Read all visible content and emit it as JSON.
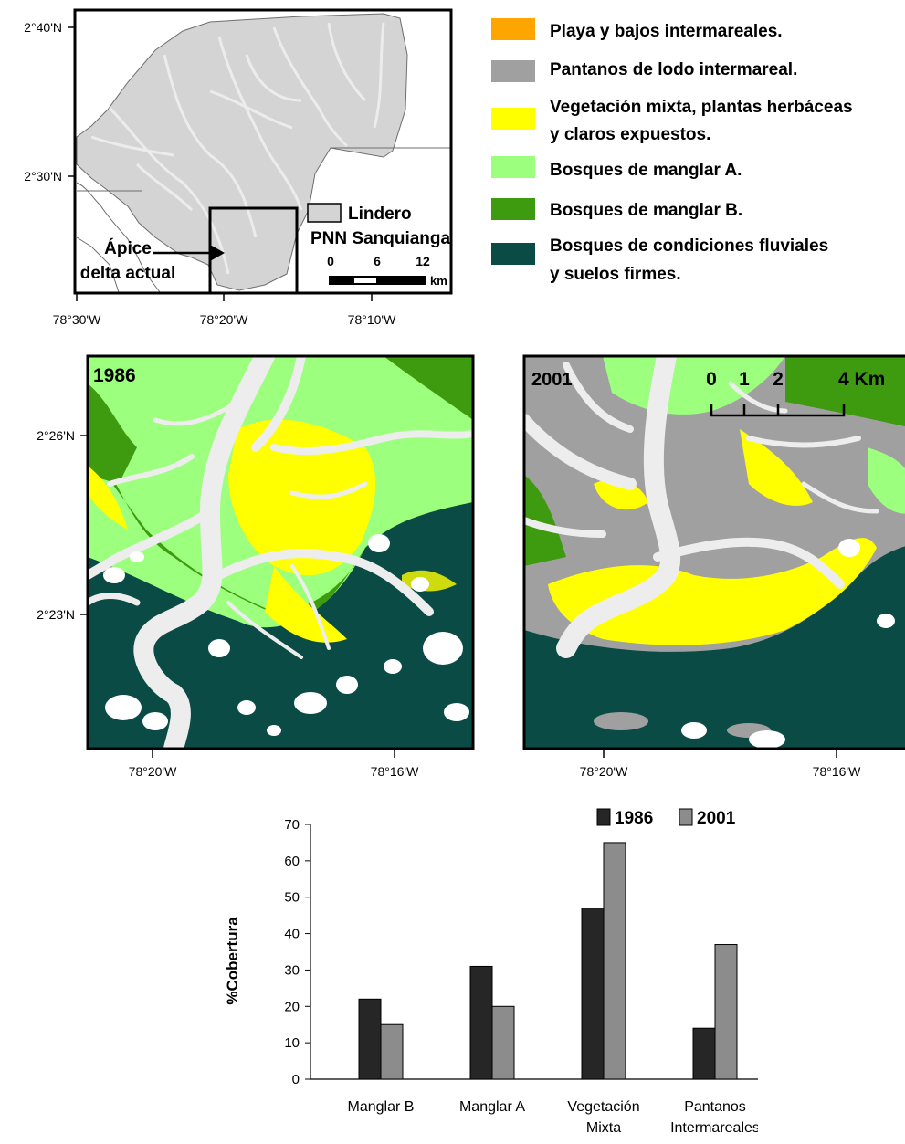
{
  "overview_map": {
    "lat_labels": [
      "2°40'N",
      "2°30'N"
    ],
    "lon_labels": [
      "78°30'W",
      "78°20'W",
      "78°10'W"
    ],
    "apex_label_line1": "Ápice",
    "apex_label_line2": "delta actual",
    "boundary_legend_line1": "Lindero",
    "boundary_legend_line2": "PNN Sanquianga",
    "scale_ticks": [
      "0",
      "6",
      "12"
    ],
    "scale_unit": "km"
  },
  "legend": {
    "items": [
      {
        "color": "#FFA500",
        "line1": "Playa y bajos intermareales.",
        "line2": ""
      },
      {
        "color": "#A0A0A0",
        "line1": "Pantanos de lodo intermareal.",
        "line2": ""
      },
      {
        "color": "#FFFF00",
        "line1": "Vegetación mixta, plantas herbáceas",
        "line2": "y claros expuestos."
      },
      {
        "color": "#9CFF7E",
        "line1": "Bosques de manglar A.",
        "line2": ""
      },
      {
        "color": "#3E9A0E",
        "line1": "Bosques de manglar B.",
        "line2": ""
      },
      {
        "color": "#0A4B45",
        "line1": "Bosques de condiciones fluviales",
        "line2": "y suelos firmes."
      }
    ]
  },
  "map_1986": {
    "year": "1986",
    "lat_labels": [
      "2°26'N",
      "2°23'N"
    ],
    "lon_labels": [
      "78°20'W",
      "78°16'W"
    ]
  },
  "map_2001": {
    "year": "2001",
    "lon_labels": [
      "78°20'W",
      "78°16'W"
    ],
    "scale_ticks": [
      "0",
      "1",
      "2",
      "4 Km"
    ]
  },
  "colors": {
    "fluvial": "#0A4B45",
    "mangrove_a": "#9CFF7E",
    "mangrove_b": "#3E9A0E",
    "mixed": "#FFFF00",
    "mud": "#A0A0A0",
    "water": "#EDEDED",
    "bar_1986": "#262626",
    "bar_2001": "#8C8C8C"
  },
  "chart_data": {
    "type": "bar",
    "categories": [
      [
        "Manglar B"
      ],
      [
        "Manglar A"
      ],
      [
        "Vegetación",
        "Mixta"
      ],
      [
        "Pantanos",
        "Intermareales"
      ]
    ],
    "series": [
      {
        "name": "1986",
        "values": [
          22,
          31,
          47,
          14
        ]
      },
      {
        "name": "2001",
        "values": [
          15,
          20,
          65,
          37
        ]
      }
    ],
    "ylabel": "%Cobertura",
    "ylim": [
      0,
      70
    ],
    "yticks": [
      0,
      10,
      20,
      30,
      40,
      50,
      60,
      70
    ],
    "legend_position": "top-right",
    "grid": false
  }
}
